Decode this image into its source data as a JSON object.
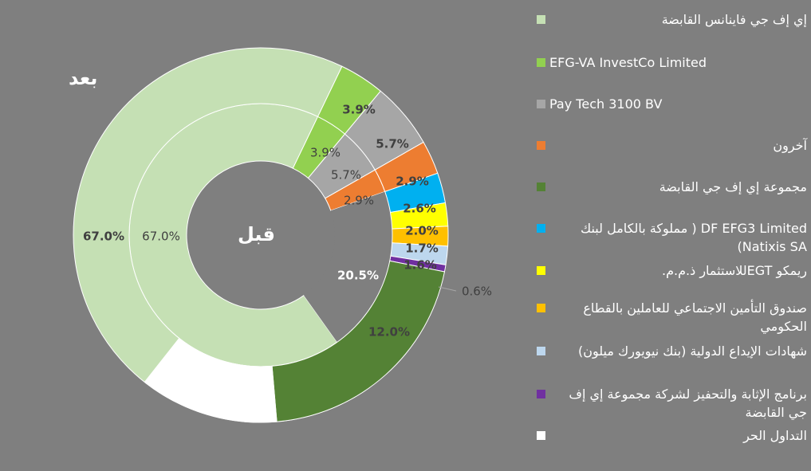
{
  "chart_data": {
    "type": "donut",
    "rings": [
      {
        "name": "قبل",
        "values": [
          67.0,
          3.9,
          5.7,
          2.9
        ]
      },
      {
        "name": "بعد",
        "values": [
          67.0,
          3.9,
          5.7,
          2.9,
          2.6,
          2.0,
          1.7,
          1.6,
          0.6,
          20.5,
          12.0
        ]
      }
    ],
    "inner_labels": [
      "67.0%",
      "3.9%",
      "5.7%",
      "2.9%"
    ],
    "outer_labels": [
      "67.0%",
      "3.9%",
      "5.7%",
      "2.9%",
      "2.6%",
      "2.0%",
      "1.7%",
      "1.6%",
      "0.6%",
      "20.5%",
      "12.0%"
    ],
    "legend_placement": "right",
    "colors": {
      "efg_hermes": "#c5e0b4",
      "efg_va": "#92d050",
      "paytech": "#a6a6a6",
      "others": "#ed7d31",
      "efg_group": "#548235",
      "df_efg3": "#00b0f0",
      "remco": "#ffff00",
      "insurance_fund": "#ffc000",
      "gdr": "#bdd7ee",
      "esop": "#7030a0",
      "free_float": "#ffffff"
    }
  },
  "legend": [
    {
      "key": "efg_hermes",
      "label": "إي إف جي فاينانس القابضة",
      "dir": "rtl"
    },
    {
      "key": "efg_va",
      "label": "EFG-VA InvestCo Limited",
      "dir": "ltr"
    },
    {
      "key": "paytech",
      "label": "Pay Tech 3100 BV",
      "dir": "ltr"
    },
    {
      "key": "others",
      "label": "آخرون",
      "dir": "rtl"
    },
    {
      "key": "efg_group",
      "label": "مجموعة إي إف جي القابضة",
      "dir": "rtl"
    },
    {
      "key": "df_efg3",
      "label": "DF EFG3 Limited ( مملوكة بالكامل لبنك Natixis SA)",
      "dir": "rtl"
    },
    {
      "key": "remco",
      "label": "ريمكو EGTللاستثمار ذ.م.م.",
      "dir": "rtl"
    },
    {
      "key": "insurance_fund",
      "label": "صندوق التأمين الاجتماعي للعاملين بالقطاع الحكومي",
      "dir": "rtl"
    },
    {
      "key": "gdr",
      "label": "شهادات الإيداع الدولية (بنك نيويورك ميلون)",
      "dir": "rtl"
    },
    {
      "key": "esop",
      "label": "برنامج الإثابة والتحفيز لشركة مجموعة إي إف جي القابضة",
      "dir": "rtl"
    },
    {
      "key": "free_float",
      "label": "التداول الحر",
      "dir": "rtl"
    }
  ],
  "ring_titles": {
    "before": "قبل",
    "after": "بعد"
  }
}
